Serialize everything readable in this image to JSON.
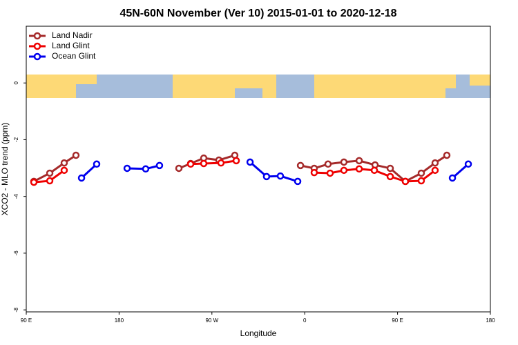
{
  "chart_data": {
    "type": "line",
    "title": "45N-60N November (Ver 10)   2015-01-01 to 2020-12-18",
    "x_label": "Longitude",
    "y_label": "XCO2 - MLO trend (ppm)",
    "xlim": [
      90,
      540
    ],
    "xticks": [
      {
        "value": 90,
        "label": "90 E"
      },
      180,
      {
        "value": 270,
        "label": "90 W"
      },
      {
        "value": 360,
        "label": "0"
      },
      {
        "value": 450,
        "label": "90 E"
      },
      {
        "value": 540,
        "label": "180"
      }
    ],
    "ylim": [
      -8.07,
      2
    ],
    "yticks": [
      0,
      -2,
      -4,
      -6,
      -8
    ],
    "legend": "top-left",
    "series": [
      {
        "name": "Land Nadir",
        "color": "#a52a2a",
        "x": [
          97.4,
          112.8,
          126.8,
          138.2,
          null,
          238,
          249.4,
          262.1,
          276.8,
          292.2,
          null,
          355.9,
          369.2,
          382.6,
          398,
          412.8,
          428.2,
          442.9,
          457.6,
          473,
          486.4,
          497.8
        ],
        "values": [
          -3.47,
          -3.18,
          -2.82,
          -2.55,
          null,
          -3.01,
          -2.84,
          -2.65,
          -2.72,
          -2.55,
          null,
          -2.91,
          -3.01,
          -2.86,
          -2.79,
          -2.74,
          -2.89,
          -3.01,
          -3.47,
          -3.18,
          -2.82,
          -2.55
        ]
      },
      {
        "name": "Land Glint",
        "color": "#ee0000",
        "x": [
          97.4,
          112.8,
          126.8,
          null,
          249.4,
          262.1,
          278.8,
          293.6,
          null,
          369.2,
          384.6,
          398,
          412.8,
          427.5,
          442.9,
          457.6,
          473,
          486.4
        ],
        "values": [
          -3.5,
          -3.45,
          -3.08,
          null,
          -2.86,
          -2.84,
          -2.82,
          -2.74,
          null,
          -3.16,
          -3.18,
          -3.08,
          -3.03,
          -3.08,
          -3.3,
          -3.47,
          -3.45,
          -3.08
        ]
      },
      {
        "name": "Ocean Glint",
        "color": "#0000ee",
        "x": [
          143.6,
          158.3,
          null,
          187.8,
          205.8,
          219.2,
          null,
          307,
          323,
          336.4,
          353.2,
          null,
          503.2,
          518.6
        ],
        "values": [
          -3.35,
          -2.86,
          null,
          -3.01,
          -3.03,
          -2.91,
          null,
          -2.79,
          -3.3,
          -3.28,
          -3.47,
          null,
          -3.35,
          -2.86
        ]
      }
    ]
  }
}
